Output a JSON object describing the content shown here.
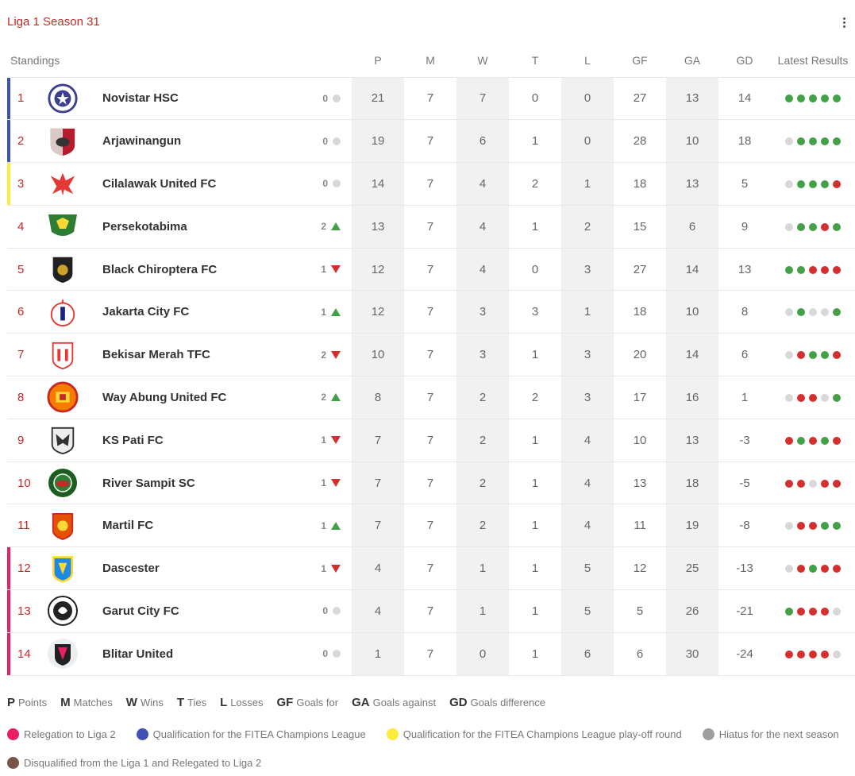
{
  "header": {
    "title": "Liga 1 Season 31",
    "menu_icon": "more-vert-icon"
  },
  "columns": {
    "standings": "Standings",
    "p": "P",
    "m": "M",
    "w": "W",
    "t": "T",
    "l": "L",
    "gf": "GF",
    "ga": "GA",
    "gd": "GD",
    "results": "Latest Results"
  },
  "colors": {
    "accent": "#c62828",
    "champions": "#3f51b5",
    "playoff": "#ffeb3b",
    "relegation": "#e91e63",
    "hiatus": "#9e9e9e",
    "disqualified": "#795548",
    "win": "#43a047",
    "loss": "#d32f2f",
    "draw": "#d8d8d8"
  },
  "rows": [
    {
      "rank": "1",
      "team": "Novistar HSC",
      "crest": "novistar-crest-icon",
      "zone": "champions",
      "move": "0",
      "trend": "same",
      "p": "21",
      "m": "7",
      "w": "7",
      "t": "0",
      "l": "0",
      "gf": "27",
      "ga": "13",
      "gd": "14",
      "results": [
        "W",
        "W",
        "W",
        "W",
        "W"
      ]
    },
    {
      "rank": "2",
      "team": "Arjawinangun",
      "crest": "arjawinangun-crest-icon",
      "zone": "champions",
      "move": "0",
      "trend": "same",
      "p": "19",
      "m": "7",
      "w": "6",
      "t": "1",
      "l": "0",
      "gf": "28",
      "ga": "10",
      "gd": "18",
      "results": [
        "D",
        "W",
        "W",
        "W",
        "W"
      ]
    },
    {
      "rank": "3",
      "team": "Cilalawak United FC",
      "crest": "cilalawak-crest-icon",
      "zone": "playoff",
      "move": "0",
      "trend": "same",
      "p": "14",
      "m": "7",
      "w": "4",
      "t": "2",
      "l": "1",
      "gf": "18",
      "ga": "13",
      "gd": "5",
      "results": [
        "D",
        "W",
        "W",
        "W",
        "L"
      ]
    },
    {
      "rank": "4",
      "team": "Persekotabima",
      "crest": "persekotabima-crest-icon",
      "zone": "",
      "move": "2",
      "trend": "up",
      "p": "13",
      "m": "7",
      "w": "4",
      "t": "1",
      "l": "2",
      "gf": "15",
      "ga": "6",
      "gd": "9",
      "results": [
        "D",
        "W",
        "W",
        "L",
        "W"
      ]
    },
    {
      "rank": "5",
      "team": "Black Chiroptera FC",
      "crest": "black-chiroptera-crest-icon",
      "zone": "",
      "move": "1",
      "trend": "down",
      "p": "12",
      "m": "7",
      "w": "4",
      "t": "0",
      "l": "3",
      "gf": "27",
      "ga": "14",
      "gd": "13",
      "results": [
        "W",
        "W",
        "L",
        "L",
        "L"
      ]
    },
    {
      "rank": "6",
      "team": "Jakarta City FC",
      "crest": "jakarta-city-crest-icon",
      "zone": "",
      "move": "1",
      "trend": "up",
      "p": "12",
      "m": "7",
      "w": "3",
      "t": "3",
      "l": "1",
      "gf": "18",
      "ga": "10",
      "gd": "8",
      "results": [
        "D",
        "W",
        "D",
        "D",
        "W"
      ]
    },
    {
      "rank": "7",
      "team": "Bekisar Merah TFC",
      "crest": "bekisar-merah-crest-icon",
      "zone": "",
      "move": "2",
      "trend": "down",
      "p": "10",
      "m": "7",
      "w": "3",
      "t": "1",
      "l": "3",
      "gf": "20",
      "ga": "14",
      "gd": "6",
      "results": [
        "D",
        "L",
        "W",
        "W",
        "L"
      ]
    },
    {
      "rank": "8",
      "team": "Way Abung United FC",
      "crest": "way-abung-crest-icon",
      "zone": "",
      "move": "2",
      "trend": "up",
      "p": "8",
      "m": "7",
      "w": "2",
      "t": "2",
      "l": "3",
      "gf": "17",
      "ga": "16",
      "gd": "1",
      "results": [
        "D",
        "L",
        "L",
        "D",
        "W"
      ]
    },
    {
      "rank": "9",
      "team": "KS Pati FC",
      "crest": "ks-pati-crest-icon",
      "zone": "",
      "move": "1",
      "trend": "down",
      "p": "7",
      "m": "7",
      "w": "2",
      "t": "1",
      "l": "4",
      "gf": "10",
      "ga": "13",
      "gd": "-3",
      "results": [
        "L",
        "W",
        "L",
        "W",
        "L"
      ]
    },
    {
      "rank": "10",
      "team": "River Sampit SC",
      "crest": "river-sampit-crest-icon",
      "zone": "",
      "move": "1",
      "trend": "down",
      "p": "7",
      "m": "7",
      "w": "2",
      "t": "1",
      "l": "4",
      "gf": "13",
      "ga": "18",
      "gd": "-5",
      "results": [
        "L",
        "L",
        "D",
        "L",
        "L"
      ]
    },
    {
      "rank": "11",
      "team": "Martil FC",
      "crest": "martil-crest-icon",
      "zone": "",
      "move": "1",
      "trend": "up",
      "p": "7",
      "m": "7",
      "w": "2",
      "t": "1",
      "l": "4",
      "gf": "11",
      "ga": "19",
      "gd": "-8",
      "results": [
        "D",
        "L",
        "L",
        "W",
        "W"
      ]
    },
    {
      "rank": "12",
      "team": "Dascester",
      "crest": "dascester-crest-icon",
      "zone": "relegation",
      "move": "1",
      "trend": "down",
      "p": "4",
      "m": "7",
      "w": "1",
      "t": "1",
      "l": "5",
      "gf": "12",
      "ga": "25",
      "gd": "-13",
      "results": [
        "D",
        "L",
        "W",
        "L",
        "L"
      ]
    },
    {
      "rank": "13",
      "team": "Garut City FC",
      "crest": "garut-city-crest-icon",
      "zone": "relegation",
      "move": "0",
      "trend": "same",
      "p": "4",
      "m": "7",
      "w": "1",
      "t": "1",
      "l": "5",
      "gf": "5",
      "ga": "26",
      "gd": "-21",
      "results": [
        "W",
        "L",
        "L",
        "L",
        "D"
      ]
    },
    {
      "rank": "14",
      "team": "Blitar United",
      "crest": "blitar-united-crest-icon",
      "zone": "relegation",
      "move": "0",
      "trend": "same",
      "p": "1",
      "m": "7",
      "w": "0",
      "t": "1",
      "l": "6",
      "gf": "6",
      "ga": "30",
      "gd": "-24",
      "results": [
        "L",
        "L",
        "L",
        "L",
        "D"
      ]
    }
  ],
  "abbreviations": [
    {
      "abbr": "P",
      "label": "Points"
    },
    {
      "abbr": "M",
      "label": "Matches"
    },
    {
      "abbr": "W",
      "label": "Wins"
    },
    {
      "abbr": "T",
      "label": "Ties"
    },
    {
      "abbr": "L",
      "label": "Losses"
    },
    {
      "abbr": "GF",
      "label": "Goals for"
    },
    {
      "abbr": "GA",
      "label": "Goals against"
    },
    {
      "abbr": "GD",
      "label": "Goals difference"
    }
  ],
  "zones": [
    {
      "label": "Relegation to Liga 2",
      "color": "#e91e63"
    },
    {
      "label": "Qualification for the FITEA Champions League",
      "color": "#3f51b5"
    },
    {
      "label": "Qualification for the FITEA Champions League play-off round",
      "color": "#ffeb3b"
    },
    {
      "label": "Hiatus for the next season",
      "color": "#9e9e9e"
    },
    {
      "label": "Disqualified from the Liga 1 and Relegated to Liga 2",
      "color": "#795548"
    }
  ]
}
